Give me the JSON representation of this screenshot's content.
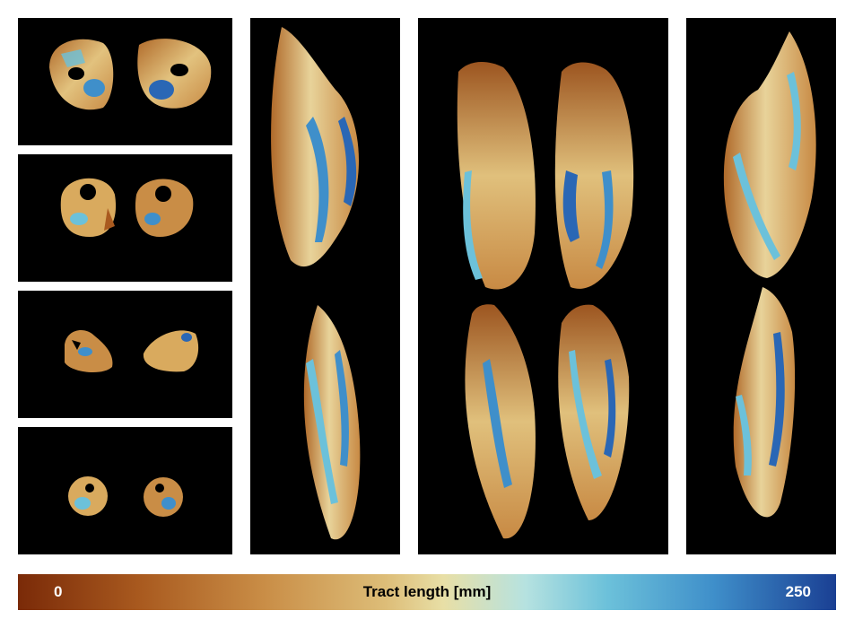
{
  "colorbar": {
    "min_label": "0",
    "max_label": "250",
    "title": "Tract length [mm]",
    "colors": [
      "#7a2a08",
      "#c98d46",
      "#e8dfa6",
      "#6cc1da",
      "#1a3f93"
    ]
  },
  "panels": [
    "axial-slice-1",
    "axial-slice-2",
    "axial-slice-3",
    "axial-slice-4",
    "sagittal-left-view",
    "coronal-view",
    "sagittal-right-view"
  ]
}
